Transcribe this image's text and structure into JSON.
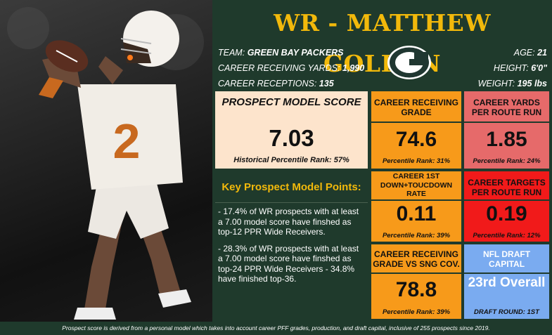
{
  "header": {
    "title": "WR - MATTHEW GOLDEN"
  },
  "player": {
    "team_label": "TEAM:",
    "team": "GREEN BAY PACKERS",
    "yards_label": "CAREER RECEIVING YARDS:",
    "yards": "1,990",
    "receptions_label": "CAREER RECEPTIONS:",
    "receptions": "135",
    "age_label": "AGE:",
    "age": "21",
    "height_label": "HEIGHT:",
    "height": "6'0\"",
    "weight_label": "WEIGHT:",
    "weight": "195 lbs"
  },
  "score": {
    "title": "PROSPECT MODEL SCORE",
    "value": "7.03",
    "rank": "Historical Percentile Rank: 57%"
  },
  "points": {
    "heading": "Key Prospect Model Points:",
    "items": [
      "- 17.4% of WR prospects with at least a 7.00 model score have finshed as top-12 PPR Wide Receivers.",
      "- 28.3% of WR prospects with at least a 7.00 model score have finshed as top-24 PPR Wide Receivers - 34.8% have finished top-36."
    ]
  },
  "stats": {
    "receiving_grade": {
      "title": "CAREER RECEIVING GRADE",
      "value": "74.6",
      "pct": "Percentile Rank: 31%"
    },
    "yprr": {
      "title": "CAREER YARDS PER ROUTE RUN",
      "value": "1.85",
      "pct": "Percentile Rank: 24%"
    },
    "first_down_td": {
      "title": "CAREER 1ST DOWN+TOUCDOWN RATE",
      "value": "0.11",
      "pct": "Percentile Rank: 39%"
    },
    "tprr": {
      "title": "CAREER TARGETS PER ROUTE RUN",
      "value": "0.19",
      "pct": "Percentile Rank: 12%"
    },
    "sng_cov": {
      "title": "CAREER RECEIVING GRADE vs SNG COV.",
      "value": "78.8",
      "pct": "Percentile Rank: 39%"
    },
    "draft": {
      "title": "NFL DRAFT CAPITAL",
      "value": "23rd Overall",
      "pct": "DRAFT ROUND: 1ST"
    }
  },
  "footer": {
    "note": "Prospect score is derived from a personal model which takes into account career PFF grades, production, and draft capital, inclusive of 255 prospects since 2019."
  },
  "colors": {
    "background": "#1f3a2c",
    "title_gold": "#f2b90b",
    "score_bg": "#fde4cc",
    "orange": "#f79a1a",
    "salmon": "#e66a6a",
    "red": "#f11a1a",
    "blue": "#7aabf0"
  },
  "icons": {
    "team_logo": "packers-g-logo"
  }
}
